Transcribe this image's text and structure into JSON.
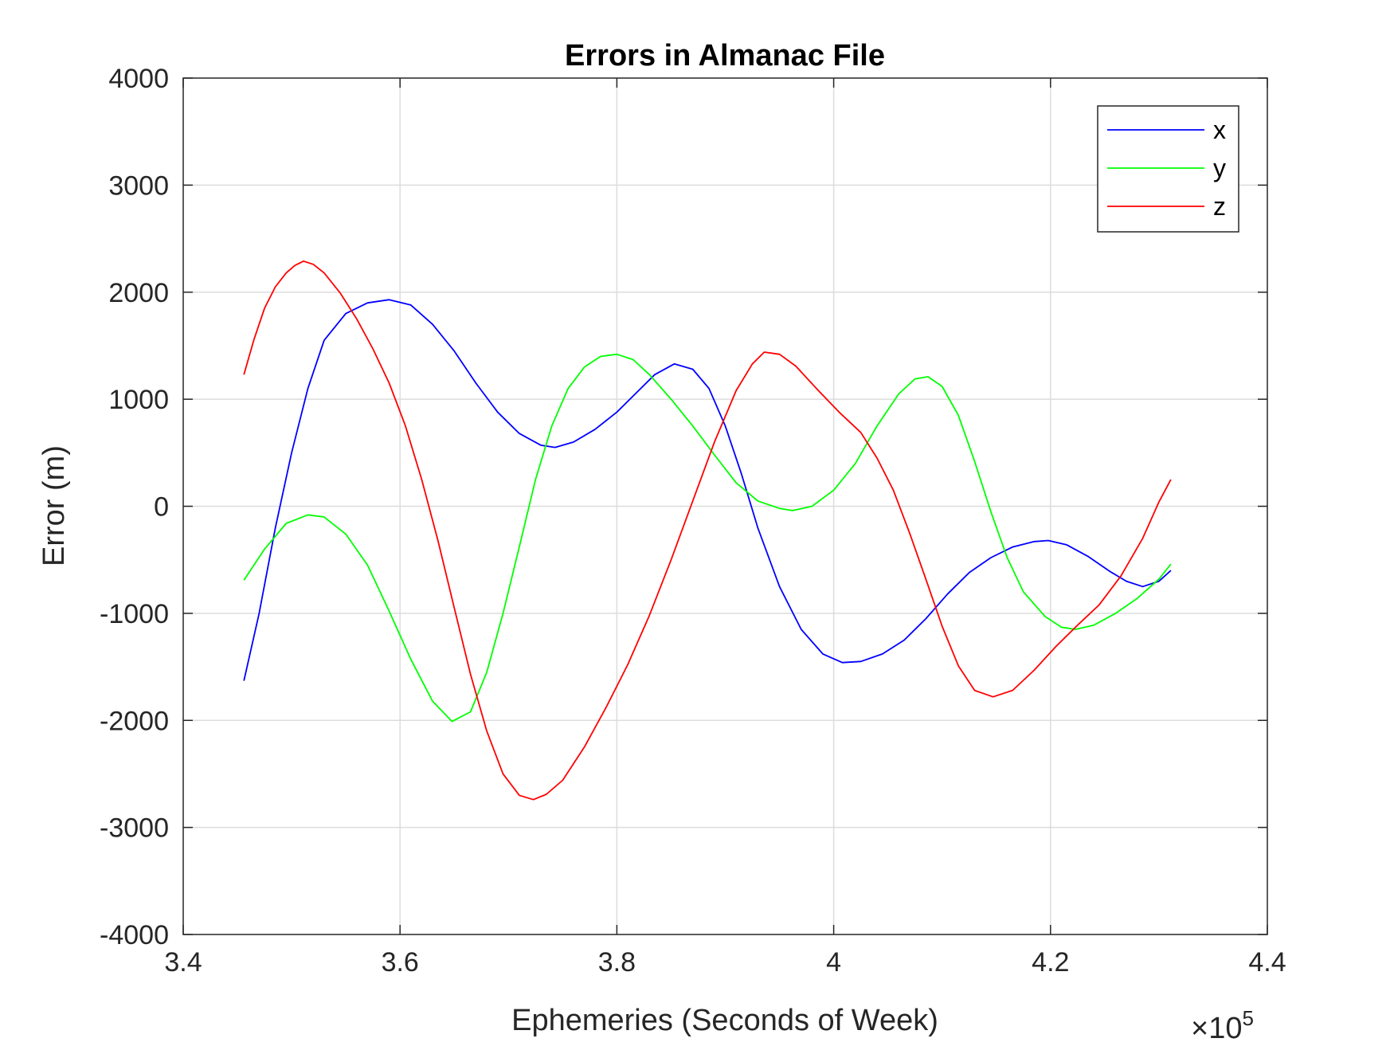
{
  "chart_data": {
    "type": "line",
    "title": "Errors in Almanac File",
    "xlabel": "Ephemeries (Seconds of Week)",
    "ylabel": "Error (m)",
    "x_exponent_label": "×10",
    "x_exponent_power": "5",
    "xlim": [
      340000,
      440000
    ],
    "ylim": [
      -4000,
      4000
    ],
    "xticks": [
      340000,
      360000,
      380000,
      400000,
      420000,
      440000
    ],
    "xtick_labels": [
      "3.4",
      "3.6",
      "3.8",
      "4",
      "4.2",
      "4.4"
    ],
    "yticks": [
      -4000,
      -3000,
      -2000,
      -1000,
      0,
      1000,
      2000,
      3000,
      4000
    ],
    "ytick_labels": [
      "-4000",
      "-3000",
      "-2000",
      "-1000",
      "0",
      "1000",
      "2000",
      "3000",
      "4000"
    ],
    "grid": true,
    "legend_position": "top-right",
    "series": [
      {
        "name": "x",
        "color": "#0000ff",
        "points": [
          [
            345600,
            -1630
          ],
          [
            347000,
            -1000
          ],
          [
            348500,
            -200
          ],
          [
            350000,
            500
          ],
          [
            351500,
            1100
          ],
          [
            353000,
            1550
          ],
          [
            355000,
            1800
          ],
          [
            357000,
            1900
          ],
          [
            359000,
            1930
          ],
          [
            361000,
            1880
          ],
          [
            363000,
            1700
          ],
          [
            365000,
            1450
          ],
          [
            367000,
            1150
          ],
          [
            369000,
            880
          ],
          [
            371000,
            680
          ],
          [
            373000,
            570
          ],
          [
            374300,
            550
          ],
          [
            376000,
            600
          ],
          [
            378000,
            720
          ],
          [
            380000,
            880
          ],
          [
            382000,
            1080
          ],
          [
            383500,
            1230
          ],
          [
            385300,
            1330
          ],
          [
            387000,
            1280
          ],
          [
            388500,
            1100
          ],
          [
            390000,
            750
          ],
          [
            391500,
            300
          ],
          [
            393000,
            -200
          ],
          [
            395000,
            -750
          ],
          [
            397000,
            -1150
          ],
          [
            399000,
            -1380
          ],
          [
            400800,
            -1460
          ],
          [
            402500,
            -1450
          ],
          [
            404500,
            -1380
          ],
          [
            406500,
            -1250
          ],
          [
            408500,
            -1050
          ],
          [
            410500,
            -820
          ],
          [
            412500,
            -620
          ],
          [
            414500,
            -480
          ],
          [
            416500,
            -380
          ],
          [
            418500,
            -330
          ],
          [
            419800,
            -320
          ],
          [
            421500,
            -360
          ],
          [
            423500,
            -470
          ],
          [
            425500,
            -610
          ],
          [
            427000,
            -700
          ],
          [
            428500,
            -750
          ],
          [
            430000,
            -700
          ],
          [
            431100,
            -600
          ]
        ]
      },
      {
        "name": "y",
        "color": "#00ff00",
        "points": [
          [
            345600,
            -690
          ],
          [
            347500,
            -400
          ],
          [
            349500,
            -160
          ],
          [
            351500,
            -80
          ],
          [
            353000,
            -100
          ],
          [
            355000,
            -260
          ],
          [
            357000,
            -550
          ],
          [
            359000,
            -980
          ],
          [
            361000,
            -1430
          ],
          [
            363000,
            -1820
          ],
          [
            364800,
            -2010
          ],
          [
            366500,
            -1920
          ],
          [
            368000,
            -1550
          ],
          [
            369500,
            -1000
          ],
          [
            371000,
            -380
          ],
          [
            372500,
            250
          ],
          [
            374000,
            750
          ],
          [
            375500,
            1100
          ],
          [
            377000,
            1300
          ],
          [
            378500,
            1400
          ],
          [
            380000,
            1420
          ],
          [
            381500,
            1370
          ],
          [
            383000,
            1230
          ],
          [
            385000,
            1000
          ],
          [
            387000,
            750
          ],
          [
            389000,
            480
          ],
          [
            391000,
            220
          ],
          [
            393000,
            50
          ],
          [
            395000,
            -20
          ],
          [
            396200,
            -40
          ],
          [
            398000,
            0
          ],
          [
            400000,
            150
          ],
          [
            402000,
            400
          ],
          [
            404000,
            750
          ],
          [
            406000,
            1050
          ],
          [
            407500,
            1190
          ],
          [
            408700,
            1210
          ],
          [
            410000,
            1120
          ],
          [
            411500,
            850
          ],
          [
            413000,
            420
          ],
          [
            414500,
            -50
          ],
          [
            416000,
            -480
          ],
          [
            417500,
            -800
          ],
          [
            419500,
            -1030
          ],
          [
            421000,
            -1130
          ],
          [
            422300,
            -1150
          ],
          [
            424000,
            -1110
          ],
          [
            426000,
            -1000
          ],
          [
            428000,
            -860
          ],
          [
            430000,
            -680
          ],
          [
            431100,
            -540
          ]
        ]
      },
      {
        "name": "z",
        "color": "#ff0000",
        "points": [
          [
            345600,
            1230
          ],
          [
            346500,
            1550
          ],
          [
            347500,
            1850
          ],
          [
            348500,
            2050
          ],
          [
            349500,
            2180
          ],
          [
            350300,
            2250
          ],
          [
            351100,
            2290
          ],
          [
            352000,
            2260
          ],
          [
            353000,
            2180
          ],
          [
            354500,
            1990
          ],
          [
            356000,
            1750
          ],
          [
            357500,
            1470
          ],
          [
            359000,
            1150
          ],
          [
            360500,
            750
          ],
          [
            362000,
            250
          ],
          [
            363500,
            -320
          ],
          [
            365000,
            -950
          ],
          [
            366500,
            -1570
          ],
          [
            368000,
            -2100
          ],
          [
            369500,
            -2500
          ],
          [
            371000,
            -2700
          ],
          [
            372300,
            -2740
          ],
          [
            373500,
            -2690
          ],
          [
            375000,
            -2560
          ],
          [
            377000,
            -2250
          ],
          [
            379000,
            -1880
          ],
          [
            381000,
            -1480
          ],
          [
            383000,
            -1020
          ],
          [
            385000,
            -500
          ],
          [
            387000,
            50
          ],
          [
            389000,
            600
          ],
          [
            391000,
            1080
          ],
          [
            392500,
            1330
          ],
          [
            393600,
            1440
          ],
          [
            395000,
            1420
          ],
          [
            396500,
            1310
          ],
          [
            398500,
            1090
          ],
          [
            400500,
            880
          ],
          [
            402500,
            690
          ],
          [
            404000,
            450
          ],
          [
            405500,
            150
          ],
          [
            407000,
            -250
          ],
          [
            408500,
            -680
          ],
          [
            410000,
            -1120
          ],
          [
            411500,
            -1490
          ],
          [
            413000,
            -1720
          ],
          [
            414700,
            -1780
          ],
          [
            416500,
            -1720
          ],
          [
            418500,
            -1530
          ],
          [
            420500,
            -1310
          ],
          [
            422500,
            -1110
          ],
          [
            424500,
            -920
          ],
          [
            426500,
            -650
          ],
          [
            428500,
            -300
          ],
          [
            430000,
            40
          ],
          [
            431100,
            250
          ]
        ]
      }
    ]
  }
}
